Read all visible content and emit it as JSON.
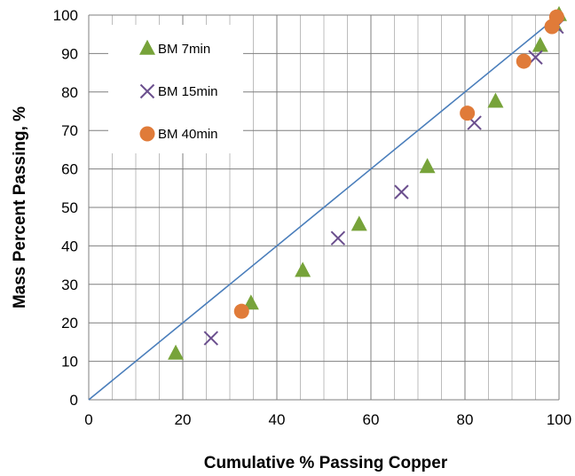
{
  "chart_data": {
    "type": "scatter",
    "xlabel": "Cumulative % Passing Copper",
    "ylabel": "Mass Percent Passing, %",
    "xlim": [
      0,
      100
    ],
    "ylim": [
      0,
      100
    ],
    "x_major_ticks": [
      0,
      20,
      40,
      60,
      80,
      100
    ],
    "y_major_ticks": [
      0,
      10,
      20,
      30,
      40,
      50,
      60,
      70,
      80,
      90,
      100
    ],
    "x_minor_step": 5,
    "grid": true,
    "legend_position": "top-left",
    "reference_line": {
      "x": [
        0,
        100
      ],
      "y": [
        0,
        100
      ],
      "color": "#4a7ebb"
    },
    "series": [
      {
        "name": "BM 7min",
        "marker": "triangle",
        "color": "#77a33a",
        "x": [
          18.5,
          34.5,
          45.5,
          57.5,
          72,
          86.5,
          96,
          99,
          100
        ],
        "y": [
          12,
          25,
          33.5,
          45.5,
          60.5,
          77.5,
          92,
          97.5,
          100
        ]
      },
      {
        "name": "BM 15min",
        "marker": "x",
        "color": "#6b4f8e",
        "x": [
          26,
          53,
          66.5,
          82,
          95,
          99.5
        ],
        "y": [
          16,
          42,
          54,
          72,
          89,
          97
        ]
      },
      {
        "name": "BM 40min",
        "marker": "circle",
        "color": "#e07b39",
        "x": [
          32.5,
          80.5,
          92.5,
          98.5,
          99.5
        ],
        "y": [
          23,
          74.5,
          88,
          97,
          99.5
        ]
      }
    ]
  }
}
